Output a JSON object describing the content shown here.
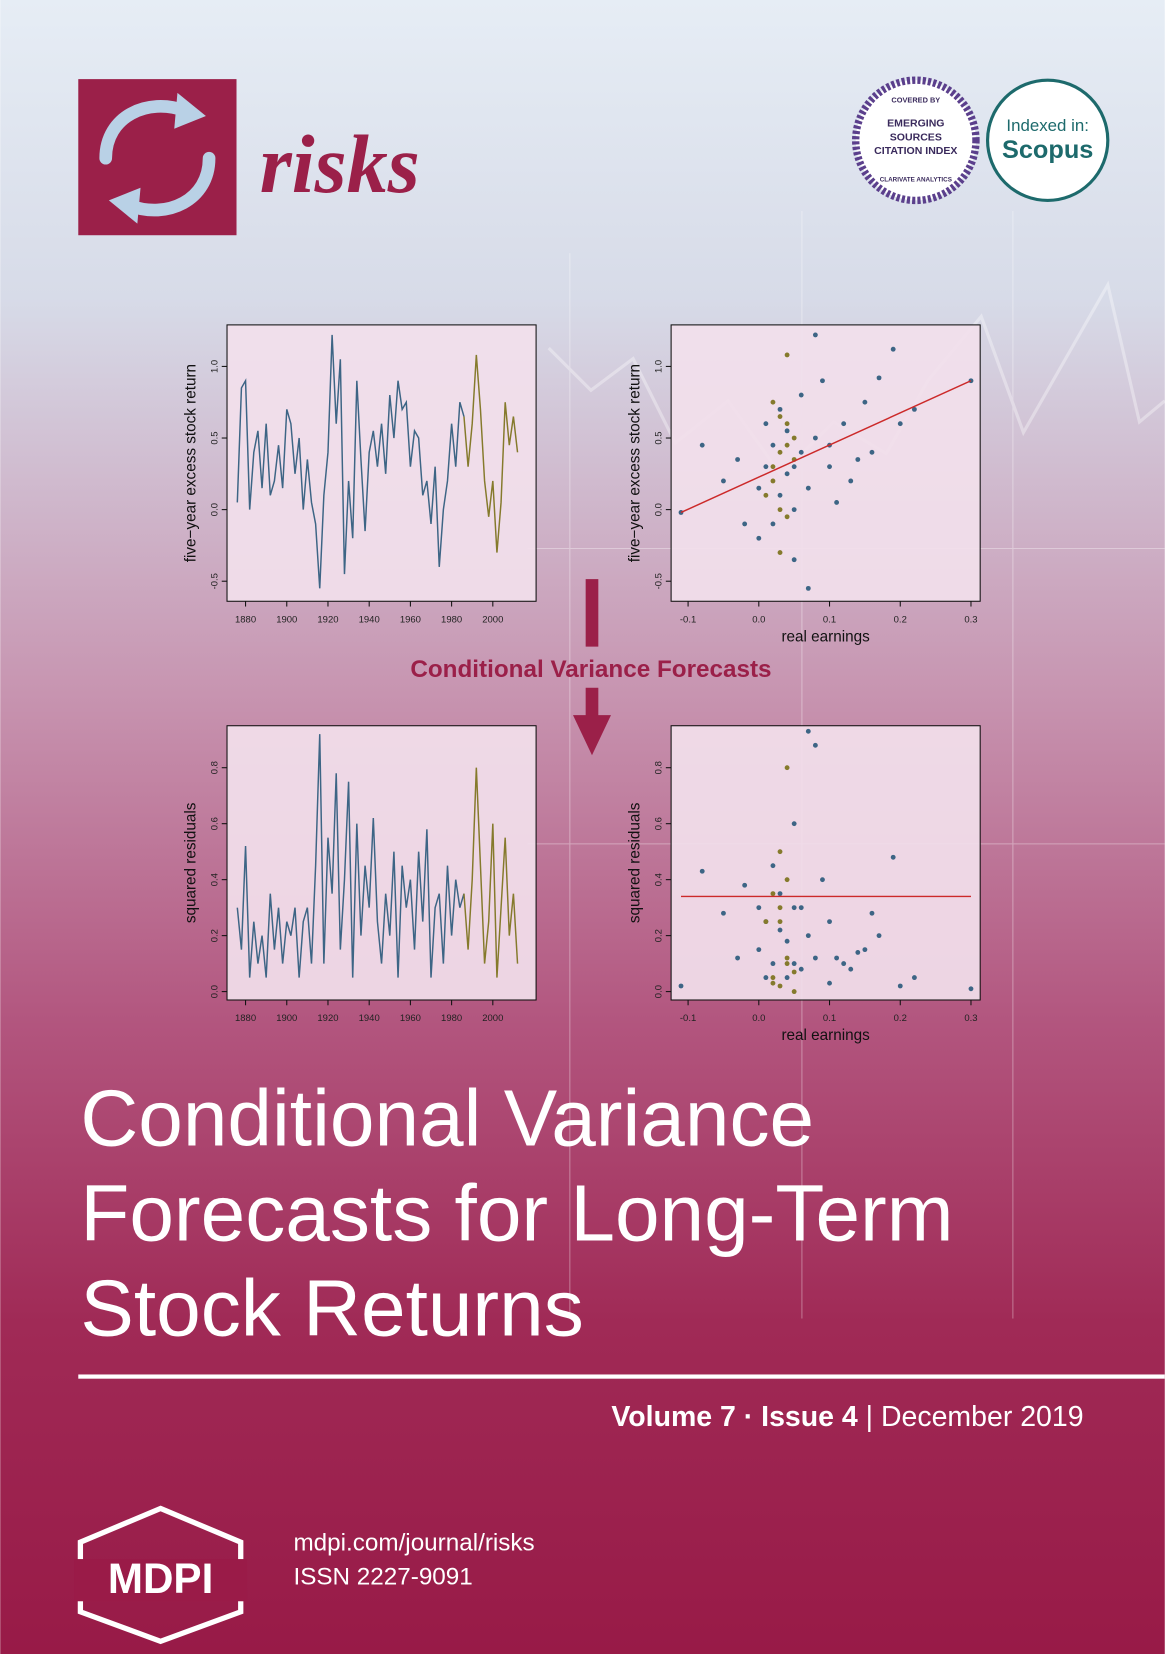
{
  "cover": {
    "journal": "risks",
    "esci": {
      "covered": "COVERED BY",
      "lines": [
        "EMERGING",
        "SOURCES",
        "CITATION INDEX"
      ],
      "bottom": "CLARIVATE ANALYTICS"
    },
    "scopus": {
      "indexed": "Indexed in:",
      "name": "Scopus"
    },
    "flow_label": "Conditional Variance Forecasts",
    "title_lines": [
      "Conditional Variance",
      "Forecasts for Long-Term",
      "Stock Returns"
    ],
    "volume": "Volume 7",
    "sep1": "·",
    "issue": "Issue 4",
    "sep2": "|",
    "date": "December 2019",
    "publisher": "MDPI",
    "url": "mdpi.com/journal/risks",
    "issn": "ISSN 2227-9091"
  },
  "chart_data": [
    {
      "type": "line",
      "ylabel": "five−year excess stock return",
      "xlim": [
        1871,
        2021
      ],
      "ylim": [
        -0.64,
        1.29
      ],
      "xticks": [
        1880,
        1900,
        1920,
        1940,
        1960,
        1980,
        2000
      ],
      "yticks": [
        -0.5,
        {
          "value": 0,
          "label": "0.0"
        },
        0.5,
        {
          "value": 1,
          "label": "1.0"
        }
      ],
      "series": [
        {
          "color": "#3d6585",
          "x": [
            1876,
            1878,
            1880,
            1882,
            1884,
            1886,
            1888,
            1890,
            1892,
            1894,
            1896,
            1898,
            1900,
            1902,
            1904,
            1906,
            1908,
            1910,
            1912,
            1914,
            1916,
            1918,
            1920,
            1922,
            1924,
            1926,
            1928,
            1930,
            1932,
            1934,
            1936,
            1938,
            1940,
            1942,
            1944,
            1946,
            1948,
            1950,
            1952,
            1954,
            1956,
            1958,
            1960,
            1962,
            1964,
            1966,
            1968,
            1970,
            1972,
            1974,
            1976,
            1978,
            1980,
            1982,
            1984,
            1986
          ],
          "values": [
            0.05,
            0.85,
            0.9,
            0.0,
            0.4,
            0.55,
            0.15,
            0.6,
            0.1,
            0.2,
            0.45,
            0.15,
            0.7,
            0.6,
            0.25,
            0.5,
            0.0,
            0.35,
            0.05,
            -0.1,
            -0.55,
            0.1,
            0.4,
            1.22,
            0.6,
            1.05,
            -0.45,
            0.2,
            -0.2,
            0.9,
            0.35,
            -0.15,
            0.4,
            0.55,
            0.3,
            0.6,
            0.25,
            0.8,
            0.5,
            0.9,
            0.7,
            0.75,
            0.3,
            0.55,
            0.5,
            0.1,
            0.2,
            -0.1,
            0.3,
            -0.4,
            0.0,
            0.2,
            0.6,
            0.3,
            0.75,
            0.65
          ]
        },
        {
          "color": "#857a2c",
          "x": [
            1986,
            1988,
            1990,
            1992,
            1994,
            1996,
            1998,
            2000,
            2002,
            2004,
            2006,
            2008,
            2010,
            2012
          ],
          "values": [
            0.65,
            0.3,
            0.6,
            1.08,
            0.7,
            0.2,
            -0.05,
            0.2,
            -0.3,
            0.05,
            0.75,
            0.45,
            0.65,
            0.4
          ]
        }
      ]
    },
    {
      "type": "scatter",
      "ylabel": "five−year excess stock return",
      "xlabel": "real earnings",
      "xlim": [
        -0.124,
        0.313
      ],
      "ylim": [
        -0.64,
        1.29
      ],
      "xticks": [
        -0.1,
        {
          "value": 0,
          "label": "0.0"
        },
        0.1,
        0.2,
        0.3
      ],
      "yticks": [
        -0.5,
        {
          "value": 0,
          "label": "0.0"
        },
        0.5,
        {
          "value": 1,
          "label": "1.0"
        }
      ],
      "series": [
        {
          "color": "#3d6585",
          "x": [
            -0.11,
            -0.08,
            -0.05,
            -0.03,
            -0.02,
            0.0,
            0.0,
            0.01,
            0.01,
            0.02,
            0.02,
            0.03,
            0.03,
            0.04,
            0.04,
            0.05,
            0.05,
            0.06,
            0.06,
            0.07,
            0.07,
            0.08,
            0.09,
            0.1,
            0.11,
            0.12,
            0.13,
            0.15,
            0.16,
            0.17,
            0.19,
            0.2,
            0.22,
            0.3,
            0.08,
            0.1,
            0.14,
            0.05
          ],
          "values": [
            -0.02,
            0.45,
            0.2,
            0.35,
            -0.1,
            0.15,
            -0.2,
            0.3,
            0.6,
            -0.1,
            0.45,
            0.1,
            0.7,
            0.25,
            0.55,
            -0.35,
            0.0,
            0.4,
            0.8,
            -0.55,
            0.15,
            0.5,
            0.9,
            0.3,
            0.05,
            0.6,
            0.2,
            0.75,
            0.4,
            0.92,
            1.12,
            0.6,
            0.7,
            0.9,
            1.22,
            0.45,
            0.35,
            0.3
          ]
        },
        {
          "color": "#857a2c",
          "x": [
            0.02,
            0.03,
            0.04,
            0.03,
            0.04,
            0.02,
            0.05,
            0.03,
            0.04,
            0.01,
            0.05,
            0.03,
            0.04,
            0.02
          ],
          "values": [
            0.2,
            0.4,
            0.45,
            0.0,
            0.6,
            0.75,
            0.35,
            -0.3,
            1.08,
            0.1,
            0.5,
            0.65,
            -0.05,
            0.3
          ]
        }
      ],
      "fit": {
        "color": "#cc2a2a",
        "x": [
          -0.11,
          0.3
        ],
        "values": [
          -0.02,
          0.9
        ]
      }
    },
    {
      "type": "line",
      "ylabel": "squared residuals",
      "xlim": [
        1871,
        2021
      ],
      "ylim": [
        -0.03,
        0.95
      ],
      "xticks": [
        1880,
        1900,
        1920,
        1940,
        1960,
        1980,
        2000
      ],
      "yticks": [
        {
          "value": 0,
          "label": "0.0"
        },
        0.2,
        0.4,
        0.6,
        0.8
      ],
      "series": [
        {
          "color": "#3d6585",
          "x": [
            1876,
            1878,
            1880,
            1882,
            1884,
            1886,
            1888,
            1890,
            1892,
            1894,
            1896,
            1898,
            1900,
            1902,
            1904,
            1906,
            1908,
            1910,
            1912,
            1914,
            1916,
            1918,
            1920,
            1922,
            1924,
            1926,
            1928,
            1930,
            1932,
            1934,
            1936,
            1938,
            1940,
            1942,
            1944,
            1946,
            1948,
            1950,
            1952,
            1954,
            1956,
            1958,
            1960,
            1962,
            1964,
            1966,
            1968,
            1970,
            1972,
            1974,
            1976,
            1978,
            1980,
            1982,
            1984,
            1986
          ],
          "values": [
            0.3,
            0.15,
            0.52,
            0.05,
            0.25,
            0.1,
            0.2,
            0.05,
            0.35,
            0.15,
            0.3,
            0.1,
            0.25,
            0.2,
            0.3,
            0.05,
            0.25,
            0.3,
            0.1,
            0.45,
            0.92,
            0.1,
            0.55,
            0.35,
            0.78,
            0.15,
            0.4,
            0.75,
            0.05,
            0.6,
            0.2,
            0.45,
            0.3,
            0.62,
            0.25,
            0.1,
            0.35,
            0.2,
            0.5,
            0.05,
            0.45,
            0.3,
            0.4,
            0.15,
            0.5,
            0.25,
            0.58,
            0.05,
            0.3,
            0.35,
            0.1,
            0.45,
            0.2,
            0.4,
            0.3,
            0.35
          ]
        },
        {
          "color": "#857a2c",
          "x": [
            1986,
            1988,
            1990,
            1992,
            1994,
            1996,
            1998,
            2000,
            2002,
            2004,
            2006,
            2008,
            2010,
            2012
          ],
          "values": [
            0.35,
            0.15,
            0.4,
            0.8,
            0.45,
            0.1,
            0.25,
            0.6,
            0.05,
            0.3,
            0.55,
            0.2,
            0.35,
            0.1
          ]
        }
      ]
    },
    {
      "type": "scatter",
      "ylabel": "squared residuals",
      "xlabel": "real earnings",
      "xlim": [
        -0.124,
        0.313
      ],
      "ylim": [
        -0.03,
        0.95
      ],
      "xticks": [
        -0.1,
        {
          "value": 0,
          "label": "0.0"
        },
        0.1,
        0.2,
        0.3
      ],
      "yticks": [
        {
          "value": 0,
          "label": "0.0"
        },
        0.2,
        0.4,
        0.6,
        0.8
      ],
      "series": [
        {
          "color": "#3d6585",
          "x": [
            -0.11,
            -0.08,
            -0.05,
            -0.03,
            -0.02,
            0.0,
            0.0,
            0.01,
            0.01,
            0.02,
            0.02,
            0.03,
            0.03,
            0.04,
            0.04,
            0.05,
            0.05,
            0.06,
            0.06,
            0.07,
            0.07,
            0.08,
            0.09,
            0.1,
            0.11,
            0.12,
            0.13,
            0.15,
            0.16,
            0.17,
            0.19,
            0.2,
            0.22,
            0.3,
            0.08,
            0.1,
            0.14,
            0.05
          ],
          "values": [
            0.02,
            0.43,
            0.28,
            0.12,
            0.38,
            0.15,
            0.3,
            0.05,
            0.25,
            0.45,
            0.1,
            0.35,
            0.22,
            0.18,
            0.05,
            0.6,
            0.3,
            0.08,
            0.3,
            0.93,
            0.2,
            0.12,
            0.4,
            0.25,
            0.12,
            0.1,
            0.08,
            0.15,
            0.28,
            0.2,
            0.48,
            0.02,
            0.05,
            0.01,
            0.88,
            0.03,
            0.14,
            0.1
          ]
        },
        {
          "color": "#857a2c",
          "x": [
            0.02,
            0.03,
            0.04,
            0.03,
            0.04,
            0.02,
            0.05,
            0.03,
            0.04,
            0.01,
            0.05,
            0.03,
            0.04,
            0.02
          ],
          "values": [
            0.05,
            0.02,
            0.1,
            0.3,
            0.12,
            0.35,
            0.0,
            0.5,
            0.8,
            0.25,
            0.07,
            0.25,
            0.4,
            0.03
          ]
        }
      ],
      "fit": {
        "color": "#cc2a2a",
        "x": [
          -0.11,
          0.3
        ],
        "values": [
          0.34,
          0.34
        ]
      }
    }
  ]
}
